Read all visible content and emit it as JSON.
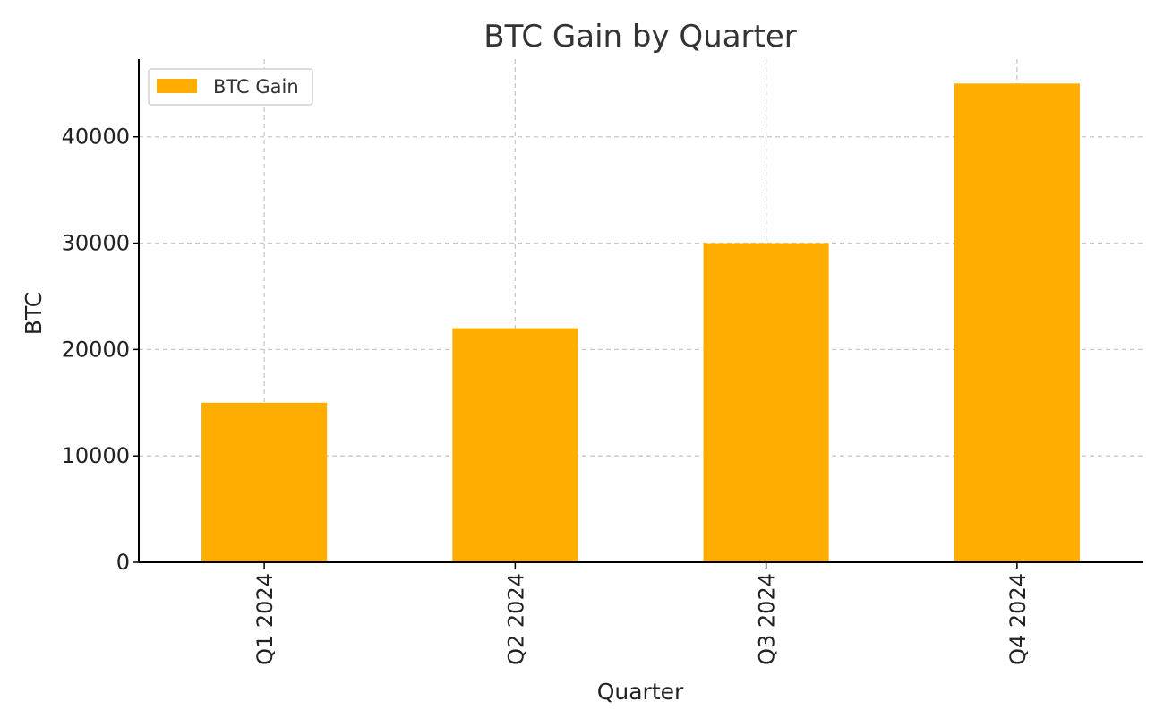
{
  "chart_data": {
    "type": "bar",
    "title": "BTC Gain by Quarter",
    "xlabel": "Quarter",
    "ylabel": "BTC",
    "categories": [
      "Q1 2024",
      "Q2 2024",
      "Q3 2024",
      "Q4 2024"
    ],
    "series": [
      {
        "name": "BTC Gain",
        "values": [
          15000,
          22000,
          30000,
          45000
        ],
        "color": "#FFAE00"
      }
    ],
    "ylim": [
      0,
      47300
    ],
    "yticks": [
      0,
      10000,
      20000,
      30000,
      40000
    ],
    "ytick_labels": [
      "0",
      "10000",
      "20000",
      "30000",
      "40000"
    ],
    "grid": true,
    "legend": {
      "position": "top-left",
      "entries": [
        "BTC Gain"
      ]
    },
    "colors": {
      "bar": "#FFAE00",
      "grid": "#c8c8c8",
      "axis": "#000000",
      "title": "#333333"
    }
  }
}
